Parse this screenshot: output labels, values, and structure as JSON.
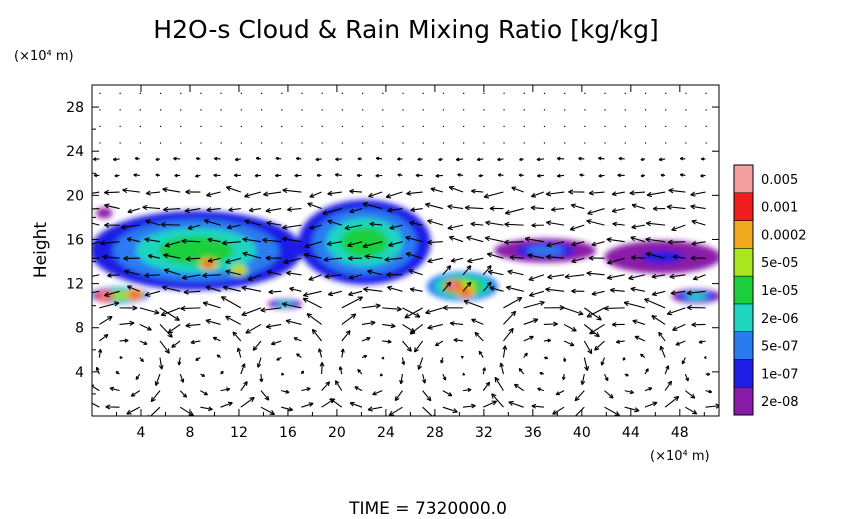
{
  "chart_data": {
    "type": "heatmap",
    "title": "H2O-s Cloud & Rain Mixing Ratio [kg/kg]",
    "ylabel": "Height",
    "x_unit_label": "(×10⁴ m)",
    "y_unit_label": "(×10⁴ m)",
    "footer": "TIME = 7320000.0",
    "xlim": [
      0,
      51.2
    ],
    "ylim": [
      0,
      30
    ],
    "x_ticks": [
      {
        "value": 4,
        "label": "4"
      },
      {
        "value": 8,
        "label": "8"
      },
      {
        "value": 12,
        "label": "12"
      },
      {
        "value": 16,
        "label": "16"
      },
      {
        "value": 20,
        "label": "20"
      },
      {
        "value": 24,
        "label": "24"
      },
      {
        "value": 28,
        "label": "28"
      },
      {
        "value": 32,
        "label": "32"
      },
      {
        "value": 36,
        "label": "36"
      },
      {
        "value": 40,
        "label": "40"
      },
      {
        "value": 44,
        "label": "44"
      },
      {
        "value": 48,
        "label": "48"
      }
    ],
    "y_ticks": [
      {
        "value": 4,
        "label": "4"
      },
      {
        "value": 8,
        "label": "8"
      },
      {
        "value": 12,
        "label": "12"
      },
      {
        "value": 16,
        "label": "16"
      },
      {
        "value": 20,
        "label": "20"
      },
      {
        "value": 24,
        "label": "24"
      },
      {
        "value": 28,
        "label": "28"
      }
    ],
    "colorbar": [
      {
        "label": "2e-08",
        "color": "#8a1aa8"
      },
      {
        "label": "1e-07",
        "color": "#1e1ee6"
      },
      {
        "label": "5e-07",
        "color": "#2a7bf0"
      },
      {
        "label": "2e-06",
        "color": "#1ed6c0"
      },
      {
        "label": "1e-05",
        "color": "#1ecf3c"
      },
      {
        "label": "5e-05",
        "color": "#a8e61e"
      },
      {
        "label": "0.0002",
        "color": "#f0a91e"
      },
      {
        "label": "0.001",
        "color": "#f01e1e"
      },
      {
        "label": "0.005",
        "color": "#f4a0a0"
      }
    ],
    "cloud_regions": [
      {
        "x0": 0.0,
        "x1": 17.0,
        "y0": 11.5,
        "y1": 18.5,
        "level": 4
      },
      {
        "x0": 17.0,
        "x1": 27.5,
        "y0": 12.0,
        "y1": 19.5,
        "level": 4
      },
      {
        "x0": 27.5,
        "x1": 33.0,
        "y0": 10.5,
        "y1": 13.0,
        "level": 5
      },
      {
        "x0": 33.0,
        "x1": 41.0,
        "y0": 14.0,
        "y1": 16.0,
        "level": 2
      },
      {
        "x0": 42.0,
        "x1": 51.2,
        "y0": 13.0,
        "y1": 15.8,
        "level": 1
      },
      {
        "x0": 0.0,
        "x1": 4.5,
        "y0": 10.3,
        "y1": 11.6,
        "level": 5
      },
      {
        "x0": 47.5,
        "x1": 51.2,
        "y0": 10.3,
        "y1": 11.4,
        "level": 3
      },
      {
        "x0": 14.5,
        "x1": 17.0,
        "y0": 9.8,
        "y1": 10.5,
        "level": 3
      },
      {
        "x0": 0.5,
        "x1": 1.5,
        "y0": 18.0,
        "y1": 18.8,
        "level": 0
      }
    ],
    "cloud_cores": [
      {
        "x": 9.5,
        "y": 13.8,
        "level": 6
      },
      {
        "x": 12.0,
        "y": 13.2,
        "level": 5
      },
      {
        "x": 29.5,
        "y": 11.8,
        "level": 7
      },
      {
        "x": 30.5,
        "y": 11.2,
        "level": 6
      },
      {
        "x": 1.0,
        "y": 10.9,
        "level": 7
      },
      {
        "x": 3.5,
        "y": 11.0,
        "level": 6
      }
    ],
    "wind_vectors": "arrow field showing circulation cells below ~10 and strong westward flow near 13–19"
  }
}
